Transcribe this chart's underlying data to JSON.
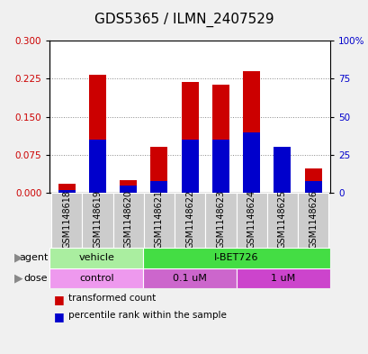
{
  "title": "GDS5365 / ILMN_2407529",
  "samples": [
    "GSM1148618",
    "GSM1148619",
    "GSM1148620",
    "GSM1148621",
    "GSM1148622",
    "GSM1148623",
    "GSM1148624",
    "GSM1148625",
    "GSM1148626"
  ],
  "transformed_counts": [
    0.018,
    0.232,
    0.025,
    0.09,
    0.218,
    0.213,
    0.24,
    0.055,
    0.048
  ],
  "percentile_ranks_pct": [
    2,
    35,
    5,
    8,
    35,
    35,
    40,
    30,
    8
  ],
  "ylim_left": [
    0,
    0.3
  ],
  "ylim_right": [
    0,
    100
  ],
  "yticks_left": [
    0,
    0.075,
    0.15,
    0.225,
    0.3
  ],
  "yticks_right": [
    0,
    25,
    50,
    75,
    100
  ],
  "agent_labels": [
    {
      "text": "vehicle",
      "start": 0,
      "end": 3,
      "color": "#aaeea0"
    },
    {
      "text": "I-BET726",
      "start": 3,
      "end": 9,
      "color": "#44dd44"
    }
  ],
  "dose_labels": [
    {
      "text": "control",
      "start": 0,
      "end": 3,
      "color": "#ee99ee"
    },
    {
      "text": "0.1 uM",
      "start": 3,
      "end": 6,
      "color": "#cc66cc"
    },
    {
      "text": "1 uM",
      "start": 6,
      "end": 9,
      "color": "#cc44cc"
    }
  ],
  "bar_color_red": "#cc0000",
  "bar_color_blue": "#0000cc",
  "bar_width": 0.55,
  "background_color": "#f0f0f0",
  "plot_bg": "#ffffff",
  "grid_color": "#888888",
  "legend_red": "transformed count",
  "legend_blue": "percentile rank within the sample",
  "title_fontsize": 11,
  "tick_label_fontsize": 7.5,
  "sample_label_fontsize": 7,
  "row_label_fontsize": 8,
  "legend_fontsize": 7.5
}
